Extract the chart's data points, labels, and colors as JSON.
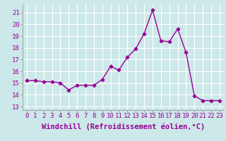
{
  "x": [
    0,
    1,
    2,
    3,
    4,
    5,
    6,
    7,
    8,
    9,
    10,
    11,
    12,
    13,
    14,
    15,
    16,
    17,
    18,
    19,
    20,
    21,
    22,
    23
  ],
  "y": [
    15.2,
    15.2,
    15.1,
    15.1,
    15.0,
    14.4,
    14.8,
    14.8,
    14.8,
    15.3,
    16.4,
    16.1,
    17.2,
    17.9,
    19.2,
    21.2,
    18.6,
    18.5,
    19.6,
    17.6,
    13.9,
    13.5,
    13.5,
    13.5
  ],
  "line_color": "#990099",
  "marker": "D",
  "xlabel": "Windchill (Refroidissement éolien,°C)",
  "xlabel_fontsize": 7.5,
  "ylabel_ticks": [
    13,
    14,
    15,
    16,
    17,
    18,
    19,
    20,
    21
  ],
  "xlim": [
    -0.5,
    23.5
  ],
  "ylim": [
    12.7,
    21.7
  ],
  "background_color": "#cce8e8",
  "grid_color": "#b0d0d0",
  "tick_label_fontsize": 6.5,
  "linewidth": 1.0,
  "markersize": 2.5
}
